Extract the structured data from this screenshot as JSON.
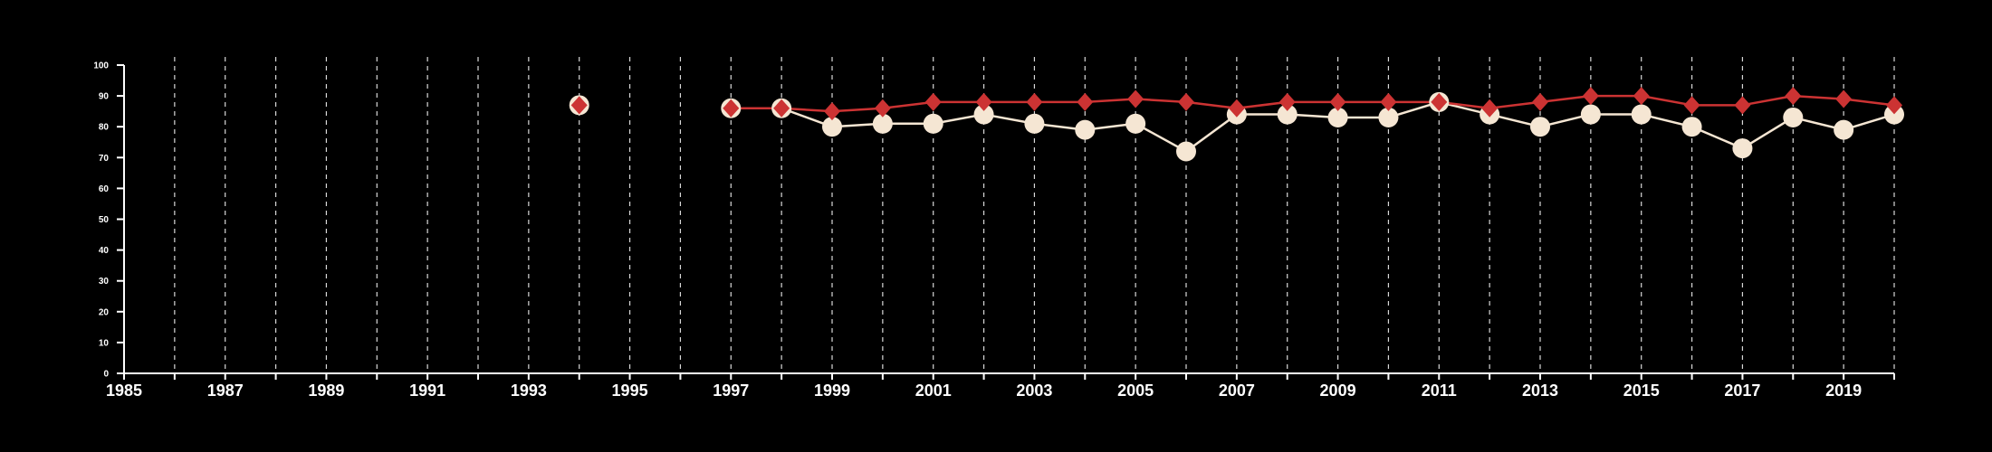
{
  "chart_data": {
    "type": "line",
    "title": "",
    "xlabel": "",
    "ylabel": "",
    "xlim": [
      1985,
      2020
    ],
    "ylim": [
      0,
      100
    ],
    "x_ticks": [
      1985,
      1987,
      1989,
      1991,
      1993,
      1995,
      1997,
      1999,
      2001,
      2003,
      2005,
      2007,
      2009,
      2011,
      2013,
      2015,
      2017,
      2019
    ],
    "y_ticks": [
      0,
      10,
      20,
      30,
      40,
      50,
      60,
      70,
      80,
      90,
      100
    ],
    "x_tick_labels": [
      "1985",
      "1987",
      "1989",
      "1991",
      "1993",
      "1995",
      "1997",
      "1999",
      "2001",
      "2003",
      "2005",
      "2007",
      "2009",
      "2011",
      "2013",
      "2015",
      "2017",
      "2019"
    ],
    "y_tick_labels": [
      "0",
      "10",
      "20",
      "30",
      "40",
      "50",
      "60",
      "70",
      "80",
      "90",
      "100"
    ],
    "x_gridlines": [
      1986,
      1987,
      1988,
      1989,
      1990,
      1991,
      1992,
      1993,
      1994,
      1995,
      1996,
      1997,
      1998,
      1999,
      2000,
      2001,
      2002,
      2003,
      2004,
      2005,
      2006,
      2007,
      2008,
      2009,
      2010,
      2011,
      2012,
      2013,
      2014,
      2015,
      2016,
      2017,
      2018,
      2019,
      2020
    ],
    "grid": "vertical dashed",
    "legend": "none",
    "colors": {
      "background": "#000000",
      "axes": "#ffffff",
      "grid": "#d8d8d8",
      "circle_series": "#f5e6d3",
      "diamond_series": "#cc3333"
    },
    "series": [
      {
        "marker": "circle",
        "color": "#f5e6d3",
        "points": [
          {
            "x": 1994,
            "y": 87
          },
          {
            "x": 1997,
            "y": 86
          },
          {
            "x": 1998,
            "y": 86
          },
          {
            "x": 1999,
            "y": 80
          },
          {
            "x": 2000,
            "y": 81
          },
          {
            "x": 2001,
            "y": 81
          },
          {
            "x": 2002,
            "y": 84
          },
          {
            "x": 2003,
            "y": 81
          },
          {
            "x": 2004,
            "y": 79
          },
          {
            "x": 2005,
            "y": 81
          },
          {
            "x": 2006,
            "y": 72
          },
          {
            "x": 2007,
            "y": 84
          },
          {
            "x": 2008,
            "y": 84
          },
          {
            "x": 2009,
            "y": 83
          },
          {
            "x": 2010,
            "y": 83
          },
          {
            "x": 2011,
            "y": 88
          },
          {
            "x": 2012,
            "y": 84
          },
          {
            "x": 2013,
            "y": 80
          },
          {
            "x": 2014,
            "y": 84
          },
          {
            "x": 2015,
            "y": 84
          },
          {
            "x": 2016,
            "y": 80
          },
          {
            "x": 2017,
            "y": 73
          },
          {
            "x": 2018,
            "y": 83
          },
          {
            "x": 2019,
            "y": 79
          },
          {
            "x": 2020,
            "y": 84
          }
        ]
      },
      {
        "marker": "diamond",
        "color": "#cc3333",
        "points": [
          {
            "x": 1994,
            "y": 87
          },
          {
            "x": 1997,
            "y": 86
          },
          {
            "x": 1998,
            "y": 86
          },
          {
            "x": 1999,
            "y": 85
          },
          {
            "x": 2000,
            "y": 86
          },
          {
            "x": 2001,
            "y": 88
          },
          {
            "x": 2002,
            "y": 88
          },
          {
            "x": 2003,
            "y": 88
          },
          {
            "x": 2004,
            "y": 88
          },
          {
            "x": 2005,
            "y": 89
          },
          {
            "x": 2006,
            "y": 88
          },
          {
            "x": 2007,
            "y": 86
          },
          {
            "x": 2008,
            "y": 88
          },
          {
            "x": 2009,
            "y": 88
          },
          {
            "x": 2010,
            "y": 88
          },
          {
            "x": 2011,
            "y": 88
          },
          {
            "x": 2012,
            "y": 86
          },
          {
            "x": 2013,
            "y": 88
          },
          {
            "x": 2014,
            "y": 90
          },
          {
            "x": 2015,
            "y": 90
          },
          {
            "x": 2016,
            "y": 87
          },
          {
            "x": 2017,
            "y": 87
          },
          {
            "x": 2018,
            "y": 90
          },
          {
            "x": 2019,
            "y": 89
          },
          {
            "x": 2020,
            "y": 87
          }
        ]
      }
    ]
  }
}
